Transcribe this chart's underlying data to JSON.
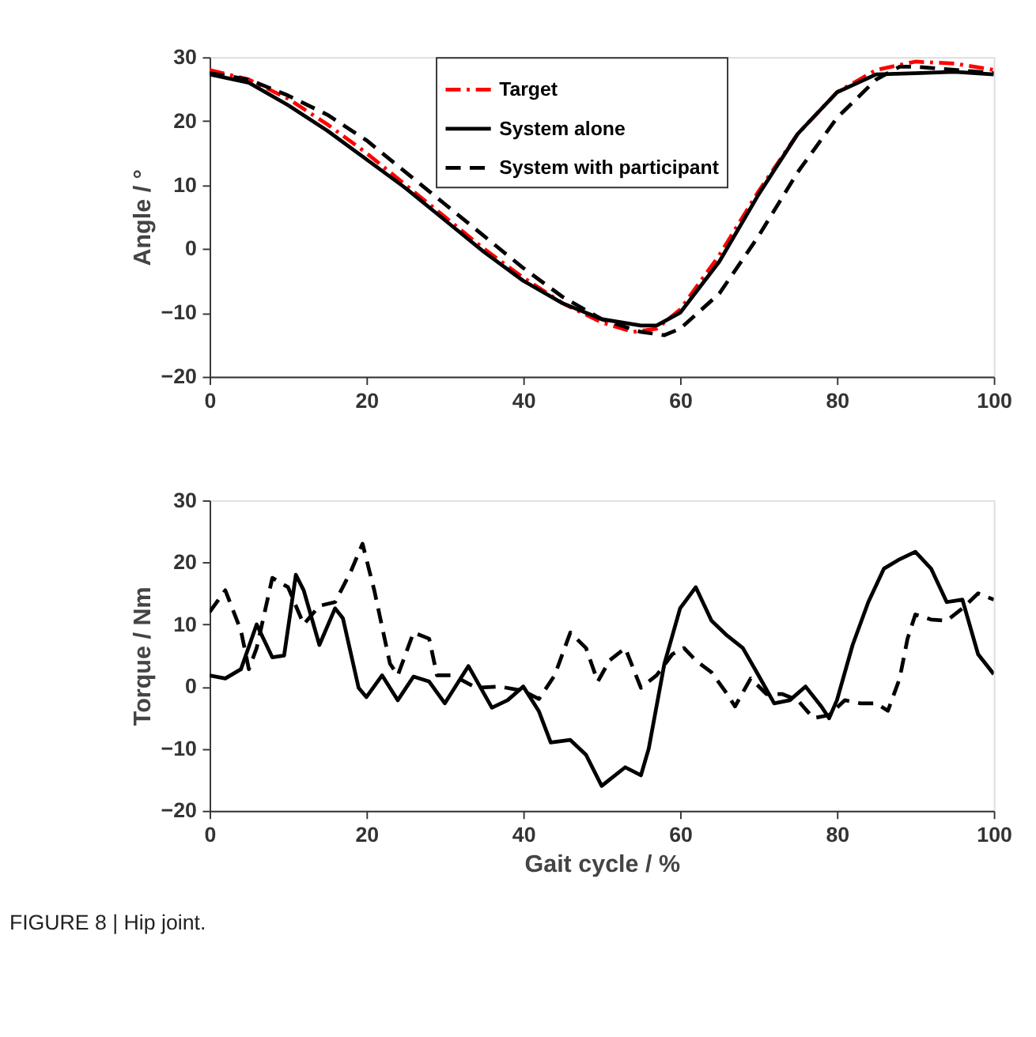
{
  "chart_data": [
    {
      "type": "line",
      "ylabel": "Angle / °",
      "xlim": [
        0,
        100
      ],
      "xticks": [
        0,
        20,
        40,
        60,
        80,
        100
      ],
      "ylim": [
        -20,
        30
      ],
      "yticks": [
        -20,
        -10,
        0,
        10,
        20,
        30
      ],
      "grid": false,
      "legend": "top",
      "series": [
        {
          "name": "Target",
          "color": "#ff0000",
          "line_style": "dashdot",
          "x": [
            0,
            5,
            10,
            15,
            20,
            25,
            30,
            35,
            40,
            45,
            50,
            54,
            57,
            60,
            65,
            70,
            75,
            80,
            85,
            90,
            95,
            100
          ],
          "values": [
            28,
            26.5,
            23.5,
            19.5,
            15,
            10,
            5,
            0,
            -4.5,
            -8.5,
            -11.5,
            -13,
            -12.5,
            -9.5,
            -1,
            9,
            18,
            24.5,
            28,
            29.3,
            29,
            28
          ]
        },
        {
          "name": "System alone",
          "color": "#000000",
          "line_style": "solid",
          "x": [
            0,
            5,
            10,
            15,
            20,
            25,
            30,
            35,
            40,
            45,
            50,
            55,
            57,
            60,
            65,
            70,
            75,
            80,
            85,
            90,
            95,
            100
          ],
          "values": [
            27.3,
            26,
            22.5,
            18.5,
            14,
            9.5,
            4.5,
            -0.5,
            -5,
            -8.5,
            -11,
            -12,
            -12,
            -10,
            -2,
            8.5,
            18,
            24.5,
            27.3,
            27.5,
            27.7,
            27.3
          ]
        },
        {
          "name": "System with participant",
          "color": "#000000",
          "line_style": "dashed",
          "x": [
            0,
            5,
            10,
            15,
            20,
            25,
            30,
            35,
            40,
            45,
            50,
            55,
            58,
            60,
            65,
            70,
            75,
            80,
            85,
            88,
            90,
            95,
            100
          ],
          "values": [
            27.5,
            26.5,
            24,
            21,
            17,
            12,
            7,
            2,
            -3,
            -7.5,
            -11,
            -13,
            -13.5,
            -12.5,
            -7,
            2,
            12,
            20.5,
            26.5,
            28.5,
            28.5,
            28,
            27.5
          ]
        }
      ]
    },
    {
      "type": "line",
      "xlabel": "Gait cycle / %",
      "ylabel": "Torque / Nm",
      "xlim": [
        0,
        100
      ],
      "xticks": [
        0,
        20,
        40,
        60,
        80,
        100
      ],
      "ylim": [
        -20,
        30
      ],
      "yticks": [
        -20,
        -10,
        0,
        10,
        20,
        30
      ],
      "grid": false,
      "legend": "top",
      "annotations": [
        "FIGURE 8 | Hip joint."
      ],
      "series": [
        {
          "name": "System alone",
          "color": "#000000",
          "line_style": "solid",
          "x": [
            0,
            2,
            4,
            6,
            8,
            9.5,
            11,
            12,
            14,
            16,
            17,
            19,
            20,
            22,
            24,
            26,
            28,
            30,
            33,
            36,
            38,
            40,
            42,
            43.5,
            46,
            48,
            50,
            53,
            55,
            56,
            58,
            60,
            62,
            64,
            66,
            68,
            70,
            72,
            74,
            76,
            78,
            79,
            80,
            82,
            84,
            86,
            88,
            90,
            92,
            94,
            96,
            98,
            100
          ],
          "values": [
            1.8,
            1.3,
            2.8,
            10,
            4.7,
            5,
            18,
            15.5,
            6.7,
            12.6,
            11,
            -0.2,
            -1.7,
            1.8,
            -2.2,
            1.6,
            0.8,
            -2.7,
            3.3,
            -3.4,
            -2.2,
            0,
            -4,
            -9,
            -8.6,
            -11,
            -16,
            -13,
            -14.3,
            -10,
            3.7,
            12.6,
            16,
            10.6,
            8.2,
            6.2,
            1.8,
            -2.7,
            -2.2,
            0,
            -3.2,
            -5.1,
            -2.2,
            6.7,
            13.6,
            19,
            20.5,
            21.7,
            19,
            13.6,
            14,
            5.2,
            2
          ]
        },
        {
          "name": "System with participant",
          "color": "#000000",
          "line_style": "dashed",
          "x": [
            0,
            2,
            4,
            5,
            6,
            8,
            10,
            12,
            14,
            16,
            18,
            19.5,
            21,
            23,
            24,
            26,
            28,
            29,
            31,
            34,
            37,
            40,
            42,
            44,
            46,
            48,
            49.5,
            51,
            53,
            55,
            57,
            59,
            60.5,
            62,
            64,
            66,
            67,
            69,
            71,
            73,
            75,
            77,
            79,
            81,
            83,
            85,
            86.5,
            88,
            89,
            90,
            92,
            94,
            96,
            98,
            100
          ],
          "values": [
            12,
            15.5,
            9,
            2.8,
            6.2,
            17.5,
            16,
            10,
            13,
            13.6,
            18.5,
            23,
            15.5,
            3.7,
            1.8,
            8.7,
            7.7,
            1.8,
            1.8,
            -0.2,
            0,
            -0.7,
            -2,
            1.8,
            8.7,
            6.2,
            0.8,
            4.2,
            6.2,
            -0.2,
            1.8,
            5.2,
            6.2,
            4.2,
            2.3,
            -1.2,
            -3.2,
            1.3,
            -1.2,
            -1.2,
            -2.2,
            -5.1,
            -4.6,
            -2.2,
            -2.7,
            -2.7,
            -3.9,
            1.3,
            7.7,
            11.6,
            10.8,
            10.6,
            12.6,
            15,
            14
          ]
        }
      ]
    }
  ]
}
